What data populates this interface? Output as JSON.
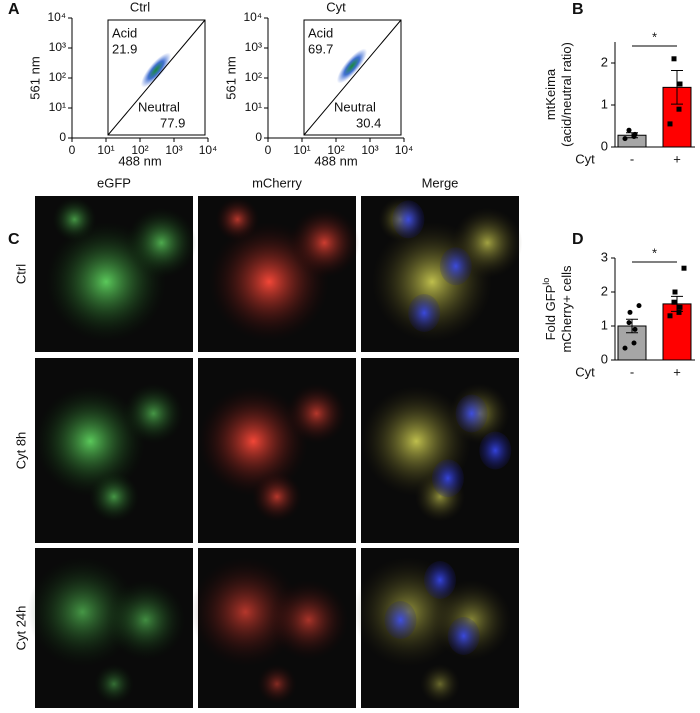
{
  "panels": [
    "A",
    "B",
    "C",
    "D"
  ],
  "chart_data": [
    {
      "type": "flow",
      "title": "Ctrl",
      "title_color": "#000000",
      "xlabel": "488 nm",
      "ylabel": "561 nm",
      "log": true,
      "xlim": [
        0,
        10000
      ],
      "ylim": [
        0,
        10000
      ],
      "xticks": [
        0,
        {
          "value": 10,
          "label": "10¹"
        },
        {
          "value": 100,
          "label": "10²"
        },
        {
          "value": 1000,
          "label": "10³"
        },
        {
          "value": 10000,
          "label": "10⁴"
        }
      ],
      "yticks": [
        0,
        {
          "value": 10,
          "label": "10¹"
        },
        {
          "value": 100,
          "label": "10²"
        },
        {
          "value": 1000,
          "label": "10³"
        },
        {
          "value": 10000,
          "label": "10⁴"
        }
      ],
      "gates": [
        {
          "name": "Acid",
          "value": 21.9
        },
        {
          "name": "Neutral",
          "value": 77.9
        }
      ]
    },
    {
      "type": "flow",
      "title": "Cyt",
      "title_color": "#ff0000",
      "xlabel": "488 nm",
      "ylabel": "561 nm",
      "log": true,
      "xlim": [
        0,
        10000
      ],
      "ylim": [
        0,
        10000
      ],
      "xticks": [
        0,
        {
          "value": 10,
          "label": "10¹"
        },
        {
          "value": 100,
          "label": "10²"
        },
        {
          "value": 1000,
          "label": "10³"
        },
        {
          "value": 10000,
          "label": "10⁴"
        }
      ],
      "yticks": [
        0,
        {
          "value": 10,
          "label": "10¹"
        },
        {
          "value": 100,
          "label": "10²"
        },
        {
          "value": 1000,
          "label": "10³"
        },
        {
          "value": 10000,
          "label": "10⁴"
        }
      ],
      "gates": [
        {
          "name": "Acid",
          "value": 69.7
        },
        {
          "name": "Neutral",
          "value": 30.4
        }
      ]
    },
    {
      "type": "bar",
      "ylabel": [
        "mtKeima",
        "(acid/neutral ratio)"
      ],
      "xlabel": "Cyt",
      "categories": [
        "-",
        "+"
      ],
      "values": [
        0.28,
        1.42
      ],
      "errors": [
        0.06,
        0.4
      ],
      "colors": [
        "#a6a6a6",
        "#ff0000"
      ],
      "points": [
        [
          0.2,
          0.25,
          0.3,
          0.4
        ],
        [
          0.55,
          0.9,
          1.5,
          2.1
        ]
      ],
      "ylim": [
        0,
        2.5
      ],
      "yticks": [
        0,
        1,
        2
      ],
      "annotation": "*"
    },
    {
      "type": "bar",
      "ylabel": [
        "Fold GFP",
        "mCherry+ cells"
      ],
      "ylabel_sup": "lo",
      "xlabel": "Cyt",
      "categories": [
        "-",
        "+"
      ],
      "values": [
        1.0,
        1.65
      ],
      "errors": [
        0.2,
        0.22
      ],
      "colors": [
        "#a6a6a6",
        "#ff0000"
      ],
      "points": [
        [
          0.35,
          0.5,
          0.9,
          1.1,
          1.4,
          1.6
        ],
        [
          1.3,
          1.4,
          1.55,
          1.7,
          2.0,
          2.7
        ]
      ],
      "ylim": [
        0,
        3
      ],
      "yticks": [
        0,
        1,
        2,
        3
      ],
      "annotation": "*"
    }
  ],
  "microscopy": {
    "columns": [
      "eGFP",
      "mCherry",
      "Merge"
    ],
    "column_colors": [
      "#33b233",
      "#e82020",
      "#000000"
    ],
    "rows": [
      "Ctrl",
      "Cyt 8h",
      "Cyt 24h"
    ]
  }
}
